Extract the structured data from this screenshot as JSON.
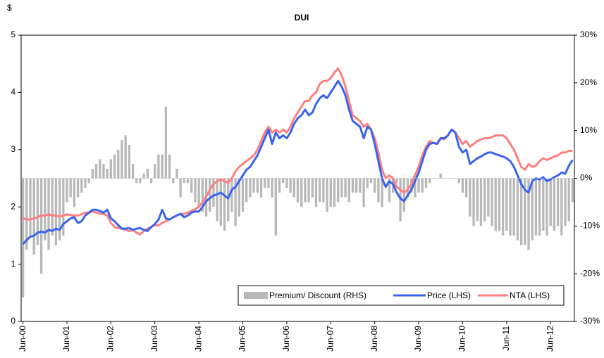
{
  "chart_data": {
    "type": "combo",
    "title": "DUI",
    "y_label": "$",
    "categories": [
      "Jun-00",
      null,
      null,
      null,
      null,
      null,
      null,
      null,
      null,
      null,
      null,
      null,
      "Jun-01",
      null,
      null,
      null,
      null,
      null,
      null,
      null,
      null,
      null,
      null,
      null,
      "Jun-02",
      null,
      null,
      null,
      null,
      null,
      null,
      null,
      null,
      null,
      null,
      null,
      "Jun-03",
      null,
      null,
      null,
      null,
      null,
      null,
      null,
      null,
      null,
      null,
      null,
      "Jun-04",
      null,
      null,
      null,
      null,
      null,
      null,
      null,
      null,
      null,
      null,
      null,
      "Jun-05",
      null,
      null,
      null,
      null,
      null,
      null,
      null,
      null,
      null,
      null,
      null,
      "Jun-06",
      null,
      null,
      null,
      null,
      null,
      null,
      null,
      null,
      null,
      null,
      null,
      "Jun-07",
      null,
      null,
      null,
      null,
      null,
      null,
      null,
      null,
      null,
      null,
      null,
      "Jun-08",
      null,
      null,
      null,
      null,
      null,
      null,
      null,
      null,
      null,
      null,
      null,
      "Jun-09",
      null,
      null,
      null,
      null,
      null,
      null,
      null,
      null,
      null,
      null,
      null,
      "Jun-10",
      null,
      null,
      null,
      null,
      null,
      null,
      null,
      null,
      null,
      null,
      null,
      "Jun-11",
      null,
      null,
      null,
      null,
      null,
      null,
      null,
      null,
      null,
      null,
      null,
      "Jun-12",
      null,
      null,
      null,
      null,
      null,
      null
    ],
    "series": [
      {
        "name": "Premium/ Discount (RHS)",
        "type": "bar",
        "axis": "y2",
        "color": "#b8b8b8",
        "values": [
          -25,
          -15,
          -12,
          -16,
          -14,
          -20,
          -13,
          -15,
          -12,
          -14,
          -13,
          -12,
          -5,
          -4,
          -6,
          -4,
          -3,
          -2,
          -1,
          2,
          3,
          4,
          3,
          2,
          4,
          5,
          6,
          8,
          9,
          7,
          3,
          -1,
          -1,
          1,
          2,
          -1,
          3,
          5,
          5,
          15,
          5,
          -1,
          2,
          -4,
          -1,
          -1,
          -3,
          -5,
          -6,
          -7,
          -8,
          -7,
          -6,
          -9,
          -10,
          -11,
          -9,
          -7,
          -10,
          -8,
          -7,
          -5,
          -4,
          -3,
          -3,
          -4,
          -2,
          -2,
          -4,
          -12,
          -3,
          -1,
          -2,
          -3,
          -4,
          -5,
          -6,
          -5,
          -5,
          -4,
          -6,
          -5,
          -5,
          -7,
          -6,
          -6,
          -5,
          -4,
          -4,
          -5,
          -3,
          -3,
          -3,
          -6,
          -2,
          -1,
          -3,
          -5,
          -6,
          0,
          -5,
          -3,
          -1,
          -9,
          -7,
          -4,
          -3,
          -4,
          -3,
          -3,
          -2,
          -1,
          0,
          0,
          1,
          0,
          0,
          0,
          0,
          -1,
          -3,
          -4,
          -8,
          -10,
          -9,
          -10,
          -9,
          -8,
          -10,
          -11,
          -11,
          -12,
          -11,
          -12,
          -12,
          -13,
          -14,
          -14,
          -15,
          -13,
          -12,
          -12,
          -11,
          -12,
          -10,
          -11,
          -10,
          -12,
          -10,
          -9,
          -5
        ]
      },
      {
        "name": "Price (LHS)",
        "type": "line",
        "color": "#3b64ee",
        "values": [
          1.35,
          1.42,
          1.48,
          1.5,
          1.55,
          1.57,
          1.55,
          1.6,
          1.58,
          1.62,
          1.6,
          1.7,
          1.75,
          1.8,
          1.82,
          1.72,
          1.75,
          1.85,
          1.9,
          1.95,
          1.95,
          1.93,
          1.9,
          1.95,
          1.8,
          1.75,
          1.68,
          1.62,
          1.62,
          1.63,
          1.6,
          1.62,
          1.63,
          1.6,
          1.58,
          1.65,
          1.7,
          1.78,
          1.95,
          1.8,
          1.78,
          1.82,
          1.85,
          1.88,
          1.82,
          1.85,
          1.9,
          1.92,
          1.92,
          2.0,
          2.1,
          2.15,
          2.2,
          2.22,
          2.25,
          2.2,
          2.15,
          2.3,
          2.35,
          2.45,
          2.55,
          2.65,
          2.7,
          2.8,
          2.9,
          3.05,
          3.2,
          3.35,
          3.1,
          3.3,
          3.2,
          3.25,
          3.2,
          3.3,
          3.45,
          3.55,
          3.6,
          3.7,
          3.6,
          3.65,
          3.8,
          3.9,
          3.95,
          3.9,
          4.0,
          4.1,
          4.2,
          4.1,
          3.95,
          3.7,
          3.5,
          3.45,
          3.4,
          3.2,
          3.4,
          3.35,
          3.1,
          2.8,
          2.5,
          2.35,
          2.45,
          2.4,
          2.25,
          2.15,
          2.1,
          2.2,
          2.3,
          2.45,
          2.6,
          2.8,
          3.0,
          3.1,
          3.12,
          3.1,
          3.2,
          3.2,
          3.25,
          3.35,
          3.3,
          3.05,
          2.95,
          3.0,
          2.75,
          2.8,
          2.85,
          2.88,
          2.92,
          2.95,
          2.95,
          2.92,
          2.9,
          2.88,
          2.85,
          2.8,
          2.7,
          2.55,
          2.4,
          2.3,
          2.25,
          2.45,
          2.5,
          2.48,
          2.52,
          2.45,
          2.48,
          2.52,
          2.55,
          2.6,
          2.58,
          2.72,
          2.82
        ]
      },
      {
        "name": "NTA (LHS)",
        "type": "line",
        "color": "#ff7f7f",
        "values": [
          1.8,
          1.78,
          1.78,
          1.8,
          1.82,
          1.85,
          1.85,
          1.87,
          1.85,
          1.85,
          1.83,
          1.85,
          1.87,
          1.86,
          1.85,
          1.85,
          1.87,
          1.9,
          1.9,
          1.92,
          1.9,
          1.88,
          1.88,
          1.85,
          1.72,
          1.65,
          1.63,
          1.62,
          1.6,
          1.58,
          1.6,
          1.55,
          1.52,
          1.58,
          1.62,
          1.65,
          1.68,
          1.68,
          1.72,
          1.75,
          1.78,
          1.82,
          1.85,
          1.88,
          1.88,
          1.9,
          1.93,
          1.96,
          2.0,
          2.08,
          2.18,
          2.3,
          2.4,
          2.45,
          2.48,
          2.45,
          2.42,
          2.5,
          2.62,
          2.7,
          2.75,
          2.8,
          2.85,
          2.9,
          3.0,
          3.15,
          3.3,
          3.4,
          3.3,
          3.35,
          3.3,
          3.35,
          3.3,
          3.4,
          3.55,
          3.65,
          3.75,
          3.85,
          3.85,
          3.95,
          4.0,
          4.15,
          4.2,
          4.2,
          4.25,
          4.35,
          4.42,
          4.3,
          4.1,
          3.85,
          3.6,
          3.55,
          3.5,
          3.4,
          3.45,
          3.35,
          3.2,
          2.95,
          2.65,
          2.5,
          2.55,
          2.5,
          2.35,
          2.3,
          2.25,
          2.3,
          2.4,
          2.55,
          2.7,
          2.9,
          3.05,
          3.15,
          3.12,
          3.1,
          3.2,
          3.18,
          3.25,
          3.35,
          3.3,
          3.2,
          3.1,
          3.15,
          3.05,
          3.1,
          3.15,
          3.18,
          3.2,
          3.2,
          3.22,
          3.25,
          3.25,
          3.25,
          3.2,
          3.1,
          3.0,
          2.85,
          2.7,
          2.65,
          2.75,
          2.7,
          2.72,
          2.8,
          2.85,
          2.82,
          2.85,
          2.88,
          2.9,
          2.95,
          2.95,
          2.98,
          2.98
        ]
      }
    ],
    "ylim": [
      0,
      5
    ],
    "yticks": [
      0,
      1,
      2,
      3,
      4,
      5
    ],
    "y2lim": [
      -30,
      30
    ],
    "y2ticks": [
      {
        "value": -30,
        "label": "-30%"
      },
      {
        "value": -20,
        "label": "-20%"
      },
      {
        "value": -10,
        "label": "-10%"
      },
      {
        "value": 0,
        "label": "0%"
      },
      {
        "value": 10,
        "label": "10%"
      },
      {
        "value": 20,
        "label": "20%"
      },
      {
        "value": 30,
        "label": "30%"
      }
    ],
    "grid": false,
    "legend": "bottom-right"
  }
}
